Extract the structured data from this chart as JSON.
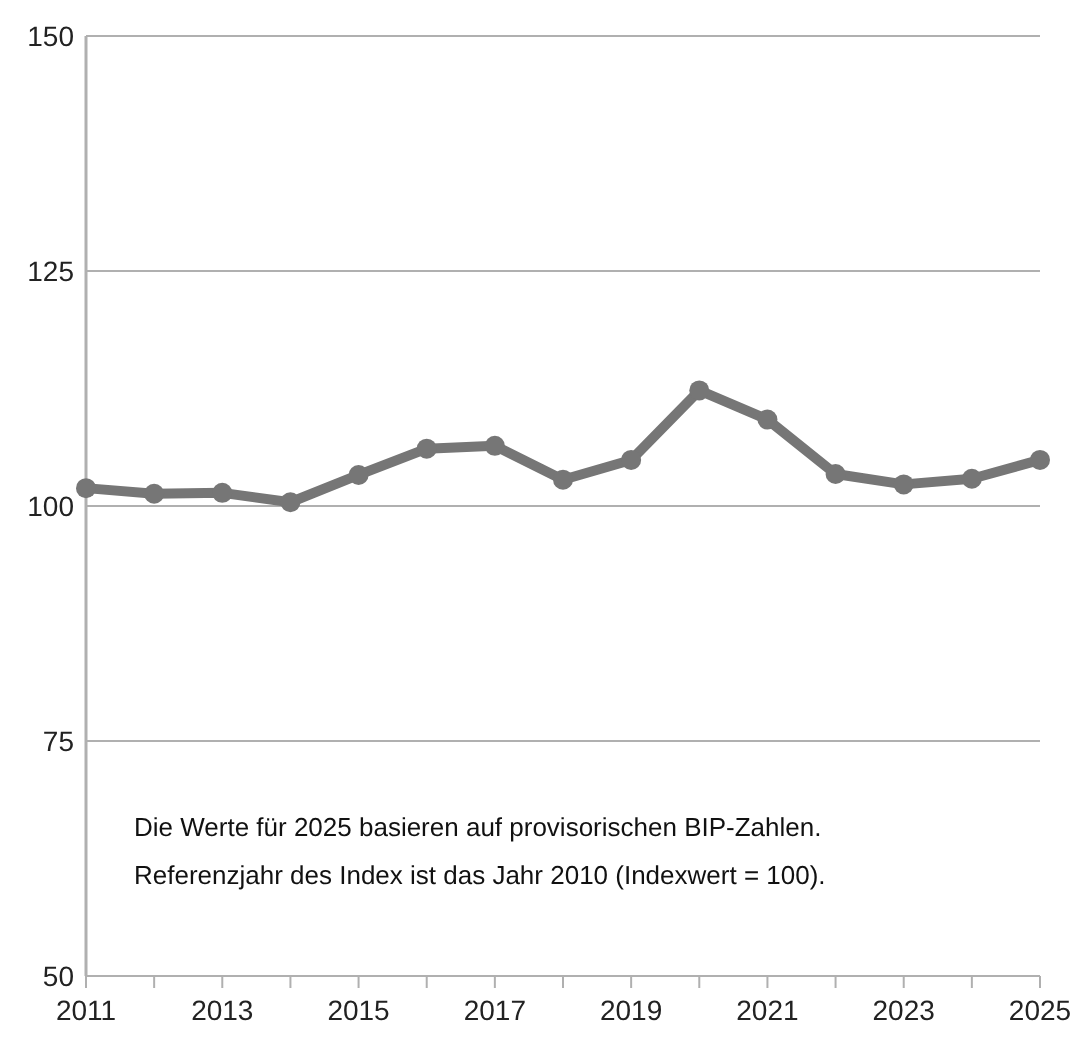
{
  "chart_data": {
    "type": "line",
    "x": [
      2011,
      2012,
      2013,
      2014,
      2015,
      2016,
      2017,
      2018,
      2019,
      2020,
      2021,
      2022,
      2023,
      2024,
      2025
    ],
    "series": [
      {
        "color": "#767676",
        "values": [
          101.9,
          101.3,
          101.4,
          100.4,
          103.3,
          106.1,
          106.4,
          102.8,
          104.9,
          112.3,
          109.2,
          103.4,
          102.3,
          102.9,
          104.9
        ]
      }
    ],
    "xlim": [
      2011,
      2025
    ],
    "xticks": [
      2011,
      2013,
      2015,
      2017,
      2019,
      2021,
      2023,
      2025
    ],
    "ylim": [
      50,
      150
    ],
    "yticks": [
      50,
      75,
      100,
      125,
      150
    ],
    "grid": "y",
    "marker": "circle",
    "line_style": "solid",
    "annotations": [
      "Die Werte für 2025 basieren auf provisorischen BIP-Zahlen.",
      "Referenzjahr des Index ist das Jahr 2010 (Indexwert = 100)."
    ]
  }
}
